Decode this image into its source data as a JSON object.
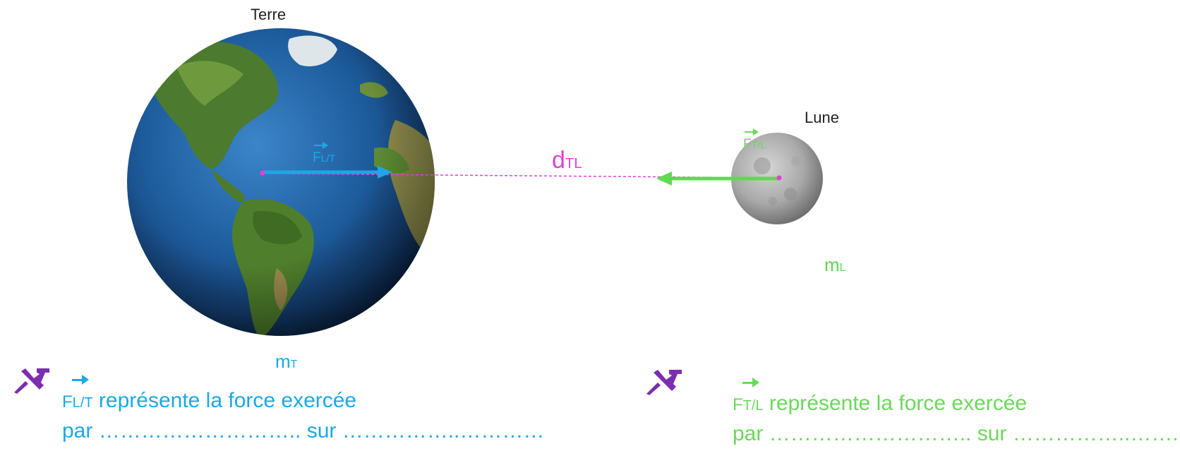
{
  "earth": {
    "label": "Terre",
    "mass_label": "m",
    "mass_sub": "T"
  },
  "moon": {
    "label": "Lune",
    "mass_label": "m",
    "mass_sub": "L"
  },
  "distance": {
    "label": "d",
    "sub": "TL"
  },
  "forces": {
    "f_lt": {
      "symbol": "F",
      "sub": "L/T",
      "color": "#1ba8e6"
    },
    "f_tl": {
      "symbol": "F",
      "sub": "T/L",
      "color": "#5fd94f"
    }
  },
  "notes": [
    {
      "symbol": "F",
      "sub": "L/T",
      "line1": " représente la force exercée",
      "line2": "par ……………………….. sur ……………..…………"
    },
    {
      "symbol": "F",
      "sub": "T/L",
      "line1": " représente la force exercée",
      "line2": "par ……………………….. sur ……………..……."
    }
  ],
  "icons": {
    "pin": "pushpin-icon",
    "pin_color": "#7b2fb0"
  }
}
